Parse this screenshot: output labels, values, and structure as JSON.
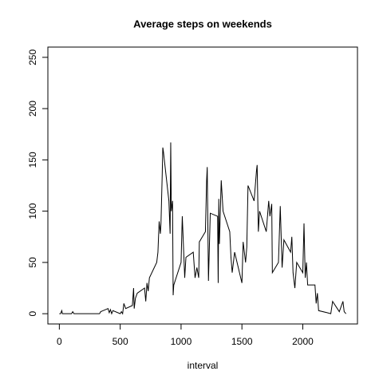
{
  "chart_data": {
    "type": "line",
    "title": "Average steps on weekends",
    "x_label": "interval",
    "x": [
      0,
      10,
      20,
      25,
      40,
      100,
      110,
      120,
      200,
      300,
      330,
      340,
      400,
      410,
      420,
      430,
      440,
      500,
      510,
      520,
      530,
      545,
      600,
      610,
      615,
      625,
      640,
      700,
      710,
      720,
      730,
      740,
      800,
      810,
      820,
      830,
      835,
      845,
      850,
      855,
      900,
      910,
      915,
      920,
      930,
      935,
      940,
      1000,
      1010,
      1030,
      1040,
      1100,
      1115,
      1130,
      1145,
      1150,
      1200,
      1210,
      1215,
      1225,
      1240,
      1300,
      1305,
      1310,
      1315,
      1330,
      1345,
      1400,
      1410,
      1420,
      1440,
      1500,
      1510,
      1530,
      1540,
      1550,
      1600,
      1620,
      1625,
      1635,
      1645,
      1700,
      1720,
      1730,
      1745,
      1750,
      1800,
      1815,
      1830,
      1845,
      1900,
      1910,
      1920,
      1935,
      1950,
      2000,
      2010,
      2020,
      2030,
      2040,
      2100,
      2110,
      2120,
      2130,
      2200,
      2230,
      2245,
      2300,
      2330,
      2340,
      2355
    ],
    "series": [
      {
        "name": "steps",
        "color": "#000000",
        "values": [
          0,
          0,
          3,
          0,
          0,
          0,
          2,
          0,
          0,
          0,
          0,
          2,
          5,
          1,
          4,
          0,
          3,
          0,
          2,
          0,
          10,
          5,
          8,
          25,
          5,
          15,
          20,
          25,
          12,
          30,
          22,
          35,
          50,
          60,
          90,
          78,
          88,
          135,
          162,
          158,
          110,
          78,
          167,
          100,
          110,
          18,
          28,
          50,
          95,
          35,
          55,
          60,
          35,
          45,
          35,
          70,
          80,
          130,
          143,
          32,
          98,
          95,
          30,
          112,
          68,
          130,
          100,
          80,
          55,
          40,
          60,
          30,
          70,
          50,
          65,
          125,
          110,
          140,
          145,
          80,
          100,
          80,
          110,
          95,
          107,
          40,
          50,
          105,
          45,
          72,
          60,
          75,
          40,
          25,
          50,
          40,
          88,
          35,
          50,
          28,
          28,
          10,
          20,
          3,
          1,
          0,
          12,
          2,
          12,
          2,
          0
        ]
      }
    ],
    "xlim": [
      -94.2,
      2449.2
    ],
    "xticks": [
      0,
      500,
      1000,
      1500,
      2000
    ],
    "ylim": [
      -10,
      260
    ],
    "yticks": [
      0,
      50,
      100,
      150,
      200,
      250
    ]
  }
}
